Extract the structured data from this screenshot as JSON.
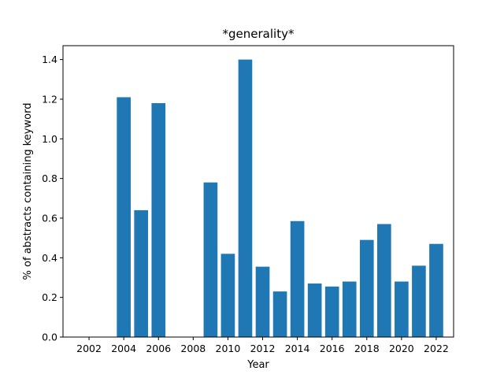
{
  "chart_data": {
    "type": "bar",
    "title": "*generality*",
    "xlabel": "Year",
    "ylabel": "% of abstracts containing keyword",
    "x": [
      2004,
      2005,
      2006,
      2009,
      2010,
      2011,
      2012,
      2013,
      2014,
      2015,
      2016,
      2017,
      2018,
      2019,
      2020,
      2021,
      2022
    ],
    "values": [
      1.21,
      0.64,
      1.18,
      0.78,
      0.42,
      1.4,
      0.355,
      0.23,
      0.585,
      0.27,
      0.255,
      0.28,
      0.49,
      0.57,
      0.28,
      0.36,
      0.47
    ],
    "xlim": [
      2000.5,
      2023.0
    ],
    "ylim": [
      0,
      1.47
    ],
    "xticks": [
      2002,
      2004,
      2006,
      2008,
      2010,
      2012,
      2014,
      2016,
      2018,
      2020,
      2022
    ],
    "yticks": [
      0.0,
      0.2,
      0.4,
      0.6,
      0.8,
      1.0,
      1.2,
      1.4
    ],
    "bar_color": "#1f77b4",
    "grid": false,
    "legend": "none"
  }
}
